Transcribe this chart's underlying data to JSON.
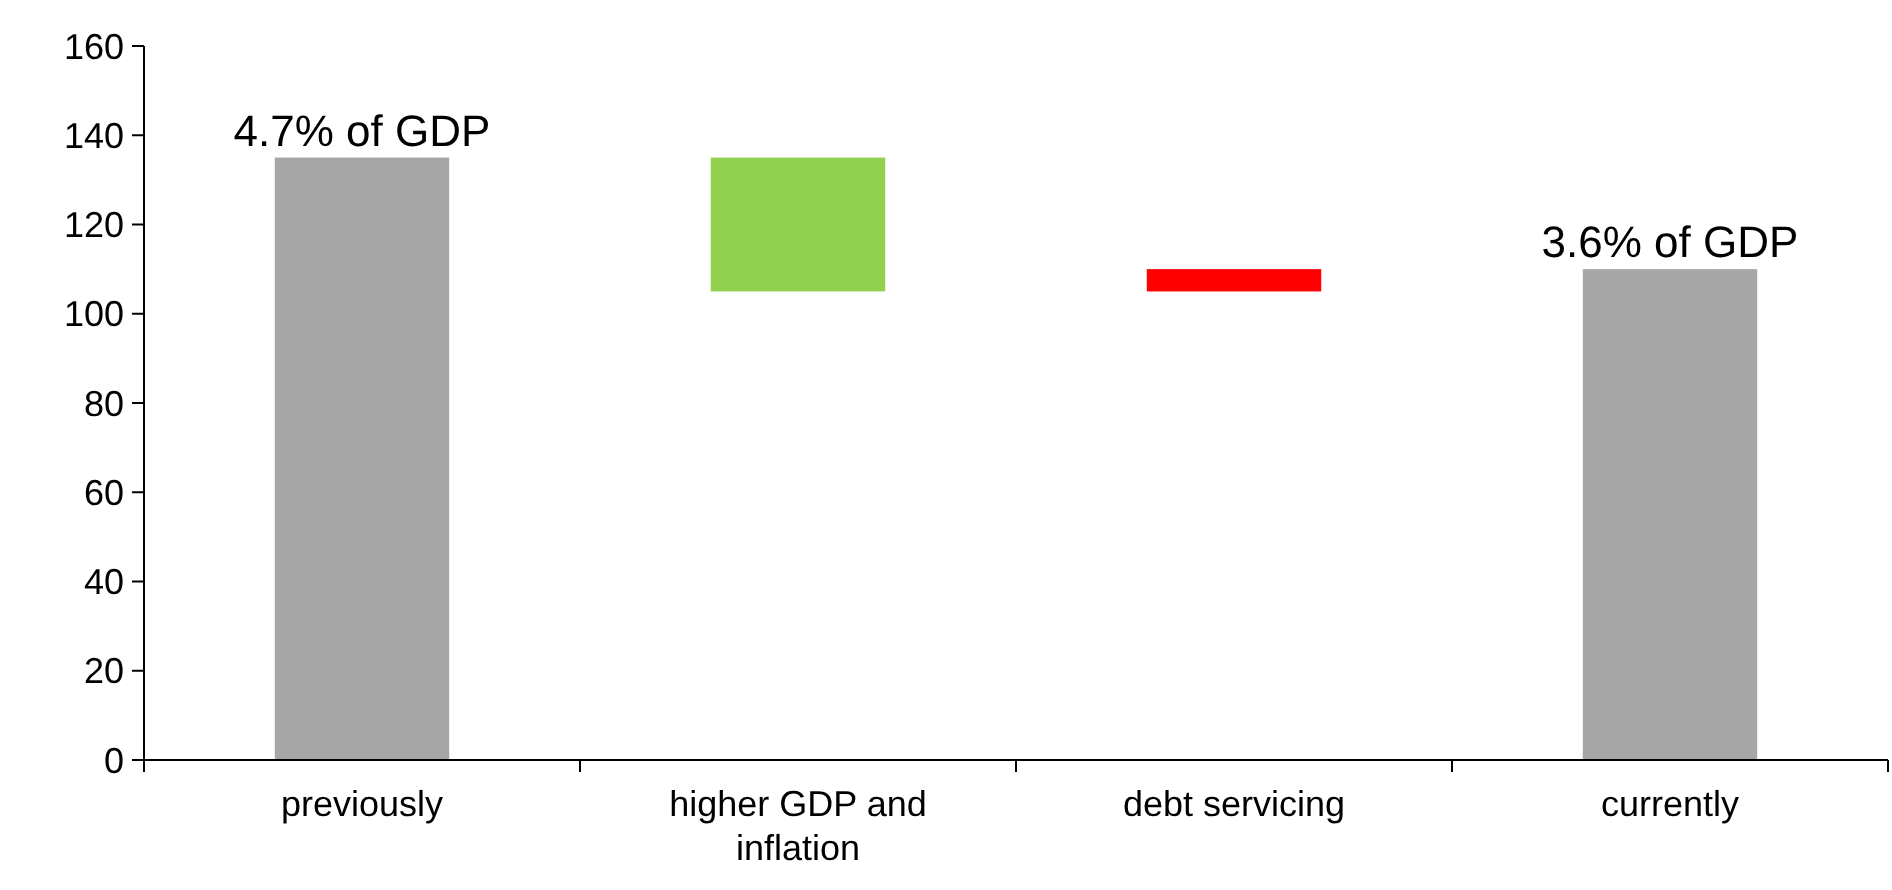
{
  "chart_data": {
    "type": "bar",
    "categories": [
      "previously",
      "higher GDP and inflation",
      "debt servicing",
      "currently"
    ],
    "values": [
      135,
      30,
      5,
      110
    ],
    "base": [
      0,
      105,
      105,
      0
    ],
    "colors": [
      "#a6a6a6",
      "#92d050",
      "#ff0000",
      "#a6a6a6"
    ],
    "annotations": [
      {
        "text": "4.7% of GDP",
        "x": "previously",
        "y": 135
      },
      {
        "text": "3.6% of GDP",
        "x": "currently",
        "y": 110
      }
    ],
    "ylim": [
      0,
      160
    ],
    "yticks": [
      0,
      20,
      40,
      60,
      80,
      100,
      120,
      140,
      160
    ],
    "grid": false
  }
}
